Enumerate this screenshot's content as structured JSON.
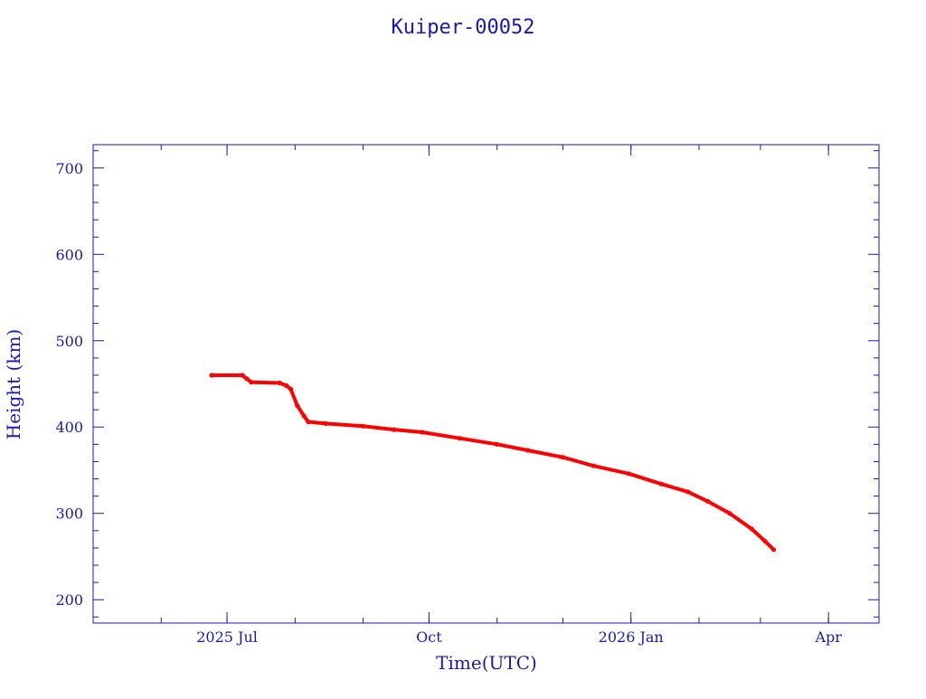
{
  "chart_data": {
    "type": "scatter",
    "title": "Kuiper-00052",
    "xlabel": "Time(UTC)",
    "ylabel": "Height (km)",
    "x_ticks": [
      {
        "date": "2025-07-01",
        "label": "2025 Jul"
      },
      {
        "date": "2025-10-01",
        "label": "Oct"
      },
      {
        "date": "2026-01-01",
        "label": "2026 Jan"
      },
      {
        "date": "2026-04-01",
        "label": "Apr"
      }
    ],
    "x_range": [
      "2025-05-01",
      "2026-04-24"
    ],
    "y_ticks": [
      200,
      300,
      400,
      500,
      600,
      700
    ],
    "ylim": [
      173,
      727
    ],
    "grid": false,
    "series": [
      {
        "color": "#ff0000",
        "points": [
          [
            "2025-06-24",
            460
          ],
          [
            "2025-07-08",
            460
          ],
          [
            "2025-07-10",
            456
          ],
          [
            "2025-07-12",
            452
          ],
          [
            "2025-07-25",
            451
          ],
          [
            "2025-07-28",
            448
          ],
          [
            "2025-07-30",
            444
          ],
          [
            "2025-08-02",
            425
          ],
          [
            "2025-08-05",
            413
          ],
          [
            "2025-08-07",
            406
          ],
          [
            "2025-08-15",
            404
          ],
          [
            "2025-09-01",
            401
          ],
          [
            "2025-09-15",
            397
          ],
          [
            "2025-09-28",
            394
          ],
          [
            "2025-10-15",
            387
          ],
          [
            "2025-11-01",
            380
          ],
          [
            "2025-11-15",
            373
          ],
          [
            "2025-12-01",
            365
          ],
          [
            "2025-12-15",
            355
          ],
          [
            "2025-12-31",
            346
          ],
          [
            "2026-01-15",
            334
          ],
          [
            "2026-01-27",
            325
          ],
          [
            "2026-02-05",
            314
          ],
          [
            "2026-02-15",
            300
          ],
          [
            "2026-02-25",
            282
          ],
          [
            "2026-03-03",
            268
          ],
          [
            "2026-03-07",
            258
          ]
        ]
      }
    ]
  }
}
